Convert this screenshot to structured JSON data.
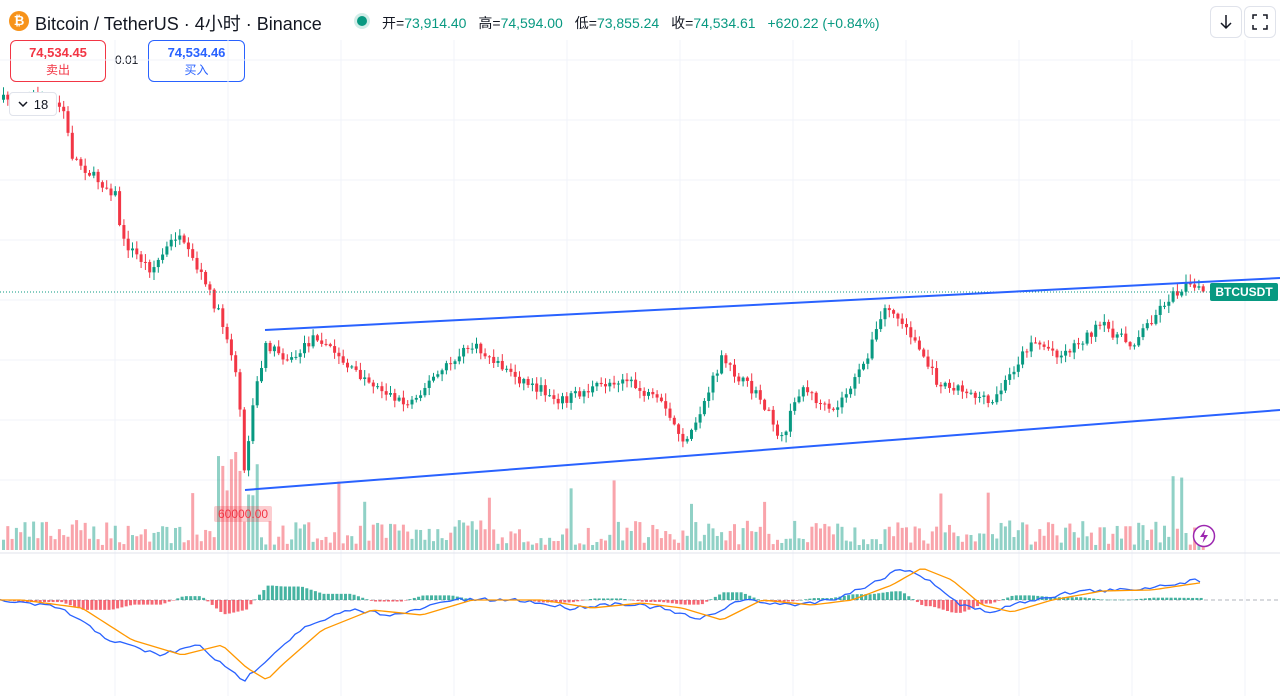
{
  "header": {
    "coin_icon_glyph": "₿",
    "title": "Bitcoin / TetherUS · 4小时 · Binance",
    "ohlc": {
      "open_label": "开=",
      "open": "73,914.40",
      "high_label": "高=",
      "high": "74,594.00",
      "low_label": "低=",
      "low": "73,855.24",
      "close_label": "收=",
      "close": "74,534.61",
      "change": "+620.22 (+0.84%)"
    }
  },
  "trade": {
    "sell_price": "74,534.45",
    "sell_label": "卖出",
    "spread": "0.01",
    "buy_price": "74,534.46",
    "buy_label": "买入"
  },
  "indicators": {
    "collapse_count": "18"
  },
  "chart": {
    "symbol_label": "BTCUSDT",
    "volume_label": "60000.00",
    "colors": {
      "up": "#089981",
      "down": "#f23645",
      "channel": "#2962ff",
      "macd": "#2962ff",
      "signal": "#ff9800",
      "alert": "#9c27b0"
    },
    "icons": [
      "bitcoin-icon",
      "arrow-down-icon",
      "fullscreen-icon",
      "chevron-down-icon",
      "lightning-icon"
    ]
  },
  "chart_data": {
    "type": "candlestick",
    "symbol": "BTCUSDT",
    "interval": "4h",
    "last_price": 74534.61,
    "series": [
      {
        "name": "price_path_approx",
        "values": [
          82000,
          80500,
          76500,
          74500,
          73500,
          72500,
          71500,
          68000,
          60500,
          66500,
          68000,
          67500,
          66000,
          67500,
          66300,
          68000,
          66800,
          64800,
          63800,
          68000,
          64800,
          67400,
          73200,
          71300,
          66900,
          69000,
          70800,
          71500,
          73000,
          74500
        ]
      },
      {
        "name": "channel_upper",
        "values": [
          69200,
          74600
        ]
      },
      {
        "name": "channel_lower",
        "values": [
          60500,
          68400
        ]
      },
      {
        "name": "macd_path_approx",
        "values": [
          0,
          -800,
          -1400,
          -1600,
          -2800,
          -200,
          0,
          -200,
          -300,
          -400,
          -200,
          -300,
          -200,
          300,
          1100,
          -200,
          -400,
          100,
          200,
          500
        ]
      }
    ]
  }
}
